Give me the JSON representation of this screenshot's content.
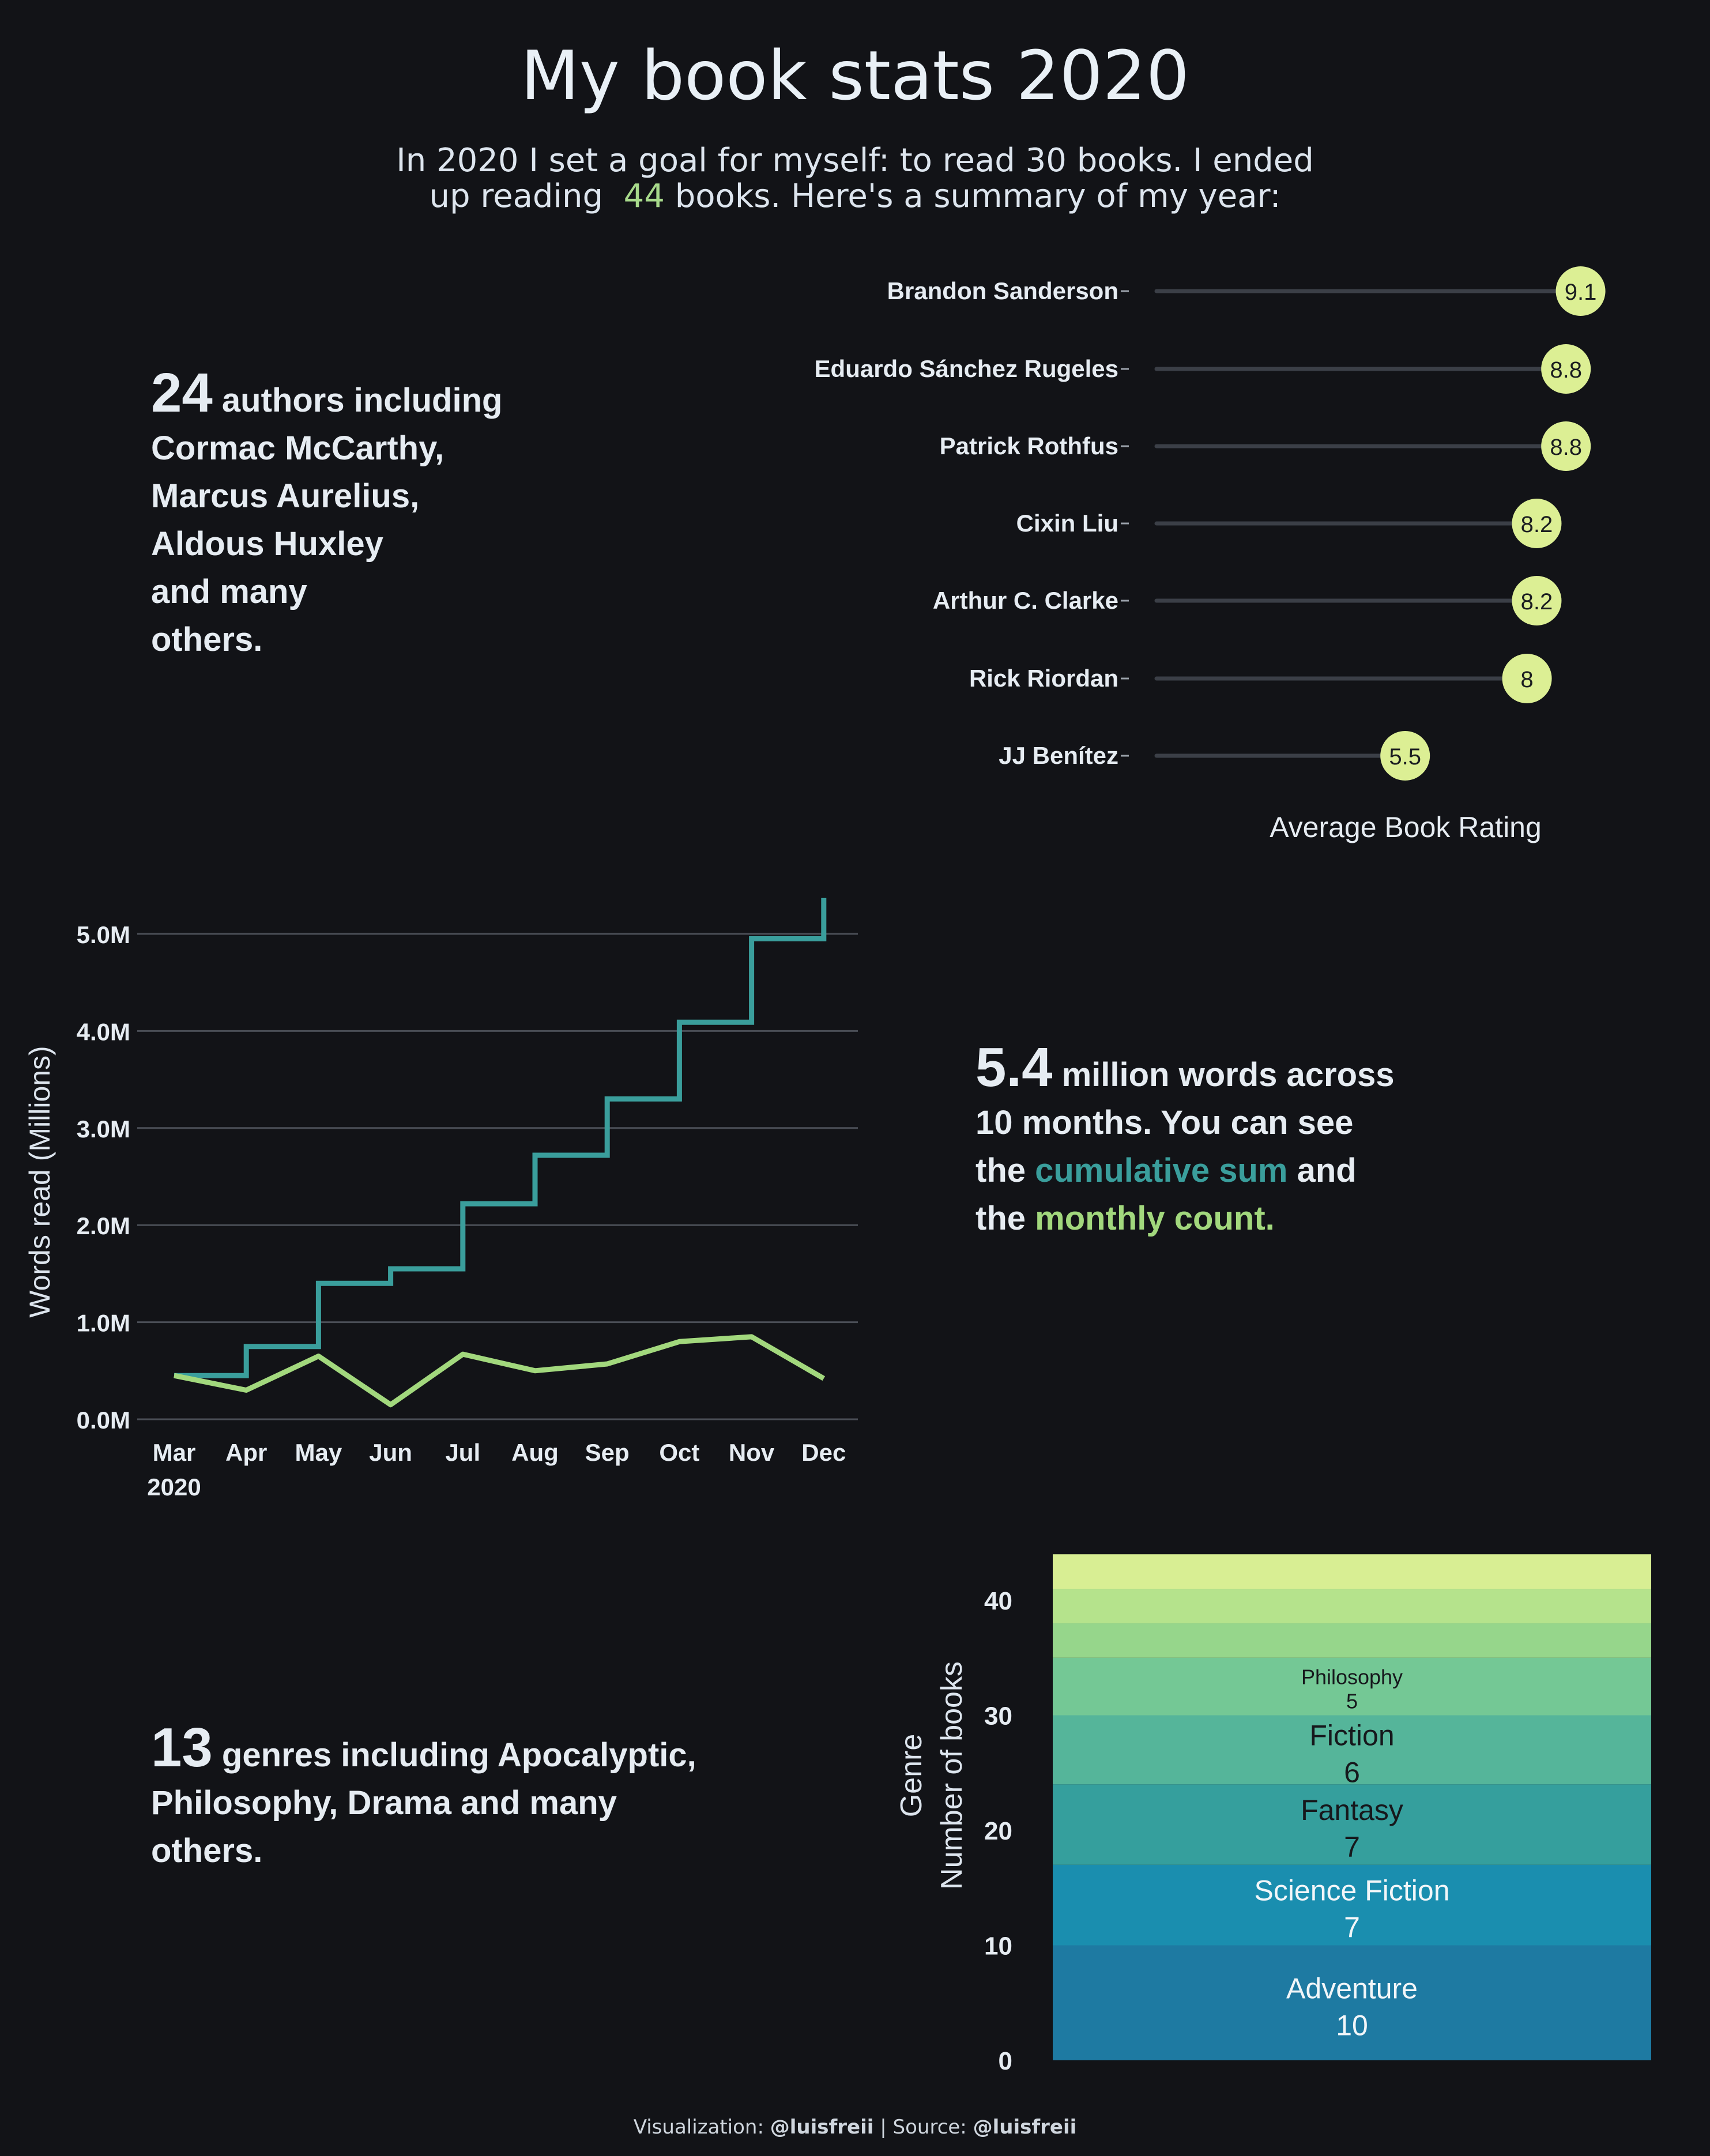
{
  "title": "My book stats 2020",
  "intro": {
    "line1": "In 2020 I set a goal for myself: to read 30 books. I ended",
    "line2_pre": "up reading",
    "line2_num": "44",
    "line2_post": "books. Here's a summary of my year:"
  },
  "authors_stat": {
    "number": "24",
    "text1": "authors including",
    "lines": [
      "Cormac McCarthy,",
      "Marcus Aurelius,",
      "Aldous Huxley",
      "and many",
      "others."
    ]
  },
  "words_stat": {
    "number": "5.4",
    "text1": "million words across",
    "line2": "10 months. You can see",
    "line3_pre": "the",
    "line3_hl": "cumulative sum",
    "line3_post": "and",
    "line4_pre": "the",
    "line4_hl": "monthly count."
  },
  "genres_stat": {
    "number": "13",
    "text1": "genres including Apocalyptic,",
    "line2": "Philosophy, Drama and many",
    "line3": "others."
  },
  "footer": {
    "viz_label": "Visualization:",
    "viz_handle": "@luisfreii",
    "sep": "|",
    "src_label": "Source:",
    "src_handle": "@luisfreii"
  },
  "colors": {
    "background": "#121317",
    "cumulative": "#3a9e9c",
    "monthly": "#a2d87d",
    "rating_dot": "#dcef94",
    "track": "#3b3f47"
  },
  "chart_data": [
    {
      "type": "lollipop",
      "xlabel": "Average Book Rating",
      "xlim": [
        0,
        10
      ],
      "categories": [
        "Brandon Sanderson",
        "Eduardo Sánchez Rugeles",
        "Patrick Rothfus",
        "Cixin Liu",
        "Arthur C. Clarke",
        "Rick Riordan",
        "JJ Benítez"
      ],
      "values": [
        9.1,
        8.8,
        8.8,
        8.2,
        8.2,
        8,
        5.5
      ],
      "labels": [
        "9.1",
        "8.8",
        "8.8",
        "8.2",
        "8.2",
        "8",
        "5.5"
      ]
    },
    {
      "type": "line",
      "ylabel": "Words read (Millions)",
      "x": [
        "Mar\n2020",
        "Apr",
        "May",
        "Jun",
        "Jul",
        "Aug",
        "Sep",
        "Oct",
        "Nov",
        "Dec"
      ],
      "x_tick_labels": [
        "Mar",
        "Apr",
        "May",
        "Jun",
        "Jul",
        "Aug",
        "Sep",
        "Oct",
        "Nov",
        "Dec"
      ],
      "x_year_label": "2020",
      "ylim": [
        0,
        5.3
      ],
      "y_ticks": [
        0,
        1,
        2,
        3,
        4,
        5
      ],
      "y_tick_labels": [
        "0.0M",
        "1.0M",
        "2.0M",
        "3.0M",
        "4.0M",
        "5.0M"
      ],
      "grid": true,
      "series": [
        {
          "id": "cumulative",
          "style": "step",
          "values": [
            0.45,
            0.75,
            1.4,
            1.55,
            2.22,
            2.72,
            3.3,
            4.09,
            4.95,
            5.37
          ]
        },
        {
          "id": "monthly",
          "style": "line",
          "values": [
            0.45,
            0.3,
            0.65,
            0.15,
            0.67,
            0.5,
            0.57,
            0.8,
            0.85,
            0.42
          ]
        }
      ]
    },
    {
      "type": "stacked_bar",
      "ylabel": "Number of books",
      "ylabel2": "Genre",
      "ylim": [
        0,
        44
      ],
      "y_ticks": [
        0,
        10,
        20,
        30,
        40
      ],
      "segments": [
        {
          "name": "Adventure",
          "value": 10,
          "label": "10",
          "color": "#1e7aa2"
        },
        {
          "name": "Science Fiction",
          "value": 7,
          "label": "7",
          "color": "#1a8eaf"
        },
        {
          "name": "Fantasy",
          "value": 7,
          "label": "7",
          "color": "#359f9d"
        },
        {
          "name": "Fiction",
          "value": 6,
          "label": "6",
          "color": "#55b59a"
        },
        {
          "name": "Philosophy",
          "value": 5,
          "label": "5",
          "color": "#74c895"
        },
        {
          "name": "",
          "value": 3,
          "label": "",
          "color": "#96d68b"
        },
        {
          "name": "",
          "value": 3,
          "label": "",
          "color": "#b5e38c"
        },
        {
          "name": "",
          "value": 3,
          "label": "",
          "color": "#d8ee93"
        }
      ]
    }
  ]
}
